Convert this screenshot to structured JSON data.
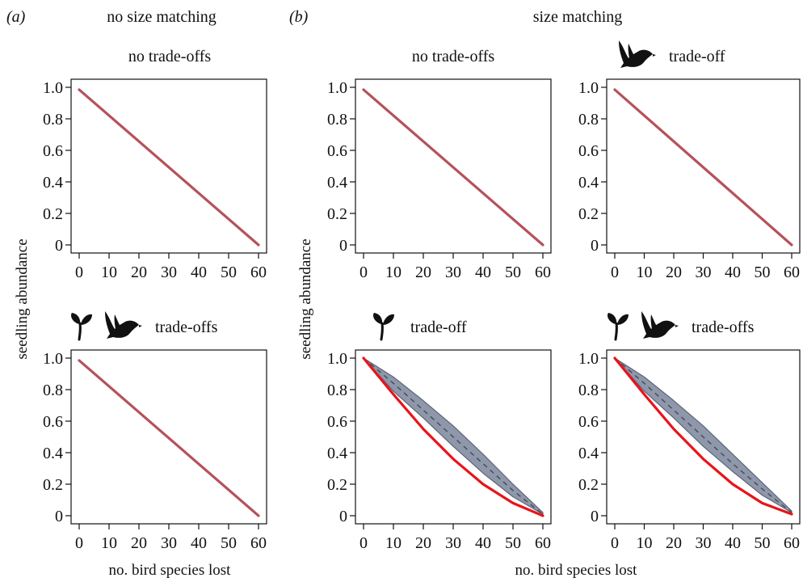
{
  "figure": {
    "panel_a_letter": "(a)",
    "panel_b_letter": "(b)",
    "panel_a_title": "no size matching",
    "panel_b_title": "size matching",
    "ylabel": "seedling abundance",
    "xlabel_a": "no. bird species lost",
    "xlabel_b": "no. bird species lost"
  },
  "colors": {
    "line_dark": "#b5525a",
    "line_red": "#e8141a",
    "band_fill": "#8f97ab",
    "band_edge": "#5c6577",
    "dashed": "#444a55",
    "silhouette": "#111111"
  },
  "chart_data": [
    {
      "id": "a-top",
      "type": "line",
      "title": "no trade-offs",
      "icons": [],
      "xlim": [
        0,
        60
      ],
      "ylim": [
        0,
        1
      ],
      "xticks": [
        0,
        10,
        20,
        30,
        40,
        50,
        60
      ],
      "yticks": [
        "0",
        "0.2",
        "0.4",
        "0.6",
        "0.8",
        "1.0"
      ],
      "series": [
        {
          "x": [
            0,
            60
          ],
          "y": [
            0.985,
            0.0
          ],
          "color_key": "line_dark"
        }
      ]
    },
    {
      "id": "a-bottom",
      "type": "line",
      "title": "trade-offs",
      "icons": [
        "seedling-icon",
        "bird-icon"
      ],
      "xlim": [
        0,
        60
      ],
      "ylim": [
        0,
        1
      ],
      "xticks": [
        0,
        10,
        20,
        30,
        40,
        50,
        60
      ],
      "yticks": [
        "0",
        "0.2",
        "0.4",
        "0.6",
        "0.8",
        "1.0"
      ],
      "series": [
        {
          "x": [
            0,
            60
          ],
          "y": [
            0.985,
            0.0
          ],
          "color_key": "line_dark"
        }
      ]
    },
    {
      "id": "b-top-left",
      "type": "line",
      "title": "no trade-offs",
      "icons": [],
      "xlim": [
        0,
        60
      ],
      "ylim": [
        0,
        1
      ],
      "xticks": [
        0,
        10,
        20,
        30,
        40,
        50,
        60
      ],
      "yticks": [
        "0",
        "0.2",
        "0.4",
        "0.6",
        "0.8",
        "1.0"
      ],
      "series": [
        {
          "x": [
            0,
            60
          ],
          "y": [
            0.985,
            0.0
          ],
          "color_key": "line_dark"
        }
      ]
    },
    {
      "id": "b-top-right",
      "type": "line",
      "title": "trade-off",
      "icons": [
        "bird-icon"
      ],
      "xlim": [
        0,
        60
      ],
      "ylim": [
        0,
        1
      ],
      "xticks": [
        0,
        10,
        20,
        30,
        40,
        50,
        60
      ],
      "yticks": [
        "0",
        "0.2",
        "0.4",
        "0.6",
        "0.8",
        "1.0"
      ],
      "series": [
        {
          "x": [
            0,
            60
          ],
          "y": [
            0.985,
            0.0
          ],
          "color_key": "line_dark"
        }
      ]
    },
    {
      "id": "b-bottom-left",
      "type": "line",
      "title": "trade-off",
      "icons": [
        "seedling-icon"
      ],
      "xlim": [
        0,
        60
      ],
      "ylim": [
        0,
        1
      ],
      "xticks": [
        0,
        10,
        20,
        30,
        40,
        50,
        60
      ],
      "yticks": [
        "0",
        "0.2",
        "0.4",
        "0.6",
        "0.8",
        "1.0"
      ],
      "series": [
        {
          "x": [
            0,
            10,
            20,
            30,
            40,
            50,
            60
          ],
          "y": [
            1.0,
            0.77,
            0.55,
            0.36,
            0.2,
            0.08,
            0.0
          ],
          "color_key": "line_red"
        }
      ],
      "band": {
        "x": [
          0,
          10,
          20,
          30,
          40,
          50,
          60
        ],
        "upper": [
          1.0,
          0.88,
          0.73,
          0.57,
          0.39,
          0.2,
          0.02
        ],
        "lower": [
          1.0,
          0.79,
          0.62,
          0.44,
          0.27,
          0.12,
          0.01
        ],
        "mean": [
          1.0,
          0.84,
          0.67,
          0.5,
          0.33,
          0.16,
          0.01
        ]
      }
    },
    {
      "id": "b-bottom-right",
      "type": "line",
      "title": "trade-offs",
      "icons": [
        "seedling-icon",
        "bird-icon"
      ],
      "xlim": [
        0,
        60
      ],
      "ylim": [
        0,
        1
      ],
      "xticks": [
        0,
        10,
        20,
        30,
        40,
        50,
        60
      ],
      "yticks": [
        "0",
        "0.2",
        "0.4",
        "0.6",
        "0.8",
        "1.0"
      ],
      "series": [
        {
          "x": [
            0,
            10,
            20,
            30,
            40,
            50,
            60
          ],
          "y": [
            1.0,
            0.77,
            0.55,
            0.36,
            0.2,
            0.08,
            0.01
          ],
          "color_key": "line_red"
        }
      ],
      "band": {
        "x": [
          0,
          10,
          20,
          30,
          40,
          50,
          60
        ],
        "upper": [
          1.0,
          0.88,
          0.73,
          0.57,
          0.39,
          0.21,
          0.03
        ],
        "lower": [
          1.0,
          0.79,
          0.62,
          0.44,
          0.28,
          0.13,
          0.02
        ],
        "mean": [
          1.0,
          0.84,
          0.67,
          0.5,
          0.33,
          0.17,
          0.02
        ]
      }
    }
  ]
}
